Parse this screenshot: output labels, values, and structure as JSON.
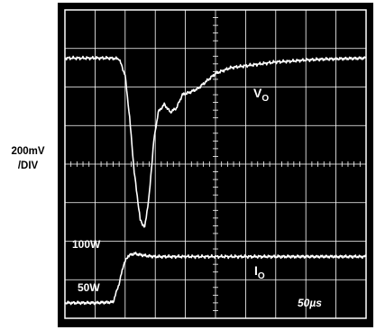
{
  "chart_data": {
    "type": "line",
    "title": "",
    "scale_label_line1": "200mV",
    "scale_label_line2": "/DIV",
    "timebase_label": "50µs",
    "grid": true,
    "x_divisions": 10,
    "y_divisions": 8,
    "xlim": [
      0,
      10
    ],
    "ylim": [
      0,
      8
    ],
    "series": [
      {
        "name": "VO",
        "label_main": "V",
        "label_sub": "O",
        "x": [
          0,
          0.5,
          1.0,
          1.5,
          1.8,
          2.0,
          2.15,
          2.3,
          2.5,
          2.65,
          2.8,
          2.95,
          3.1,
          3.3,
          3.5,
          3.7,
          3.9,
          4.1,
          4.4,
          4.7,
          5.0,
          5.5,
          6.0,
          6.5,
          7.0,
          7.5,
          8.0,
          8.5,
          9.0,
          9.5,
          10.0
        ],
        "y": [
          6.75,
          6.75,
          6.75,
          6.75,
          6.73,
          6.3,
          5.2,
          3.8,
          2.55,
          2.35,
          3.2,
          4.6,
          5.35,
          5.55,
          5.35,
          5.45,
          5.8,
          5.85,
          5.95,
          6.15,
          6.35,
          6.5,
          6.55,
          6.6,
          6.65,
          6.67,
          6.7,
          6.72,
          6.73,
          6.74,
          6.75
        ],
        "color": "#ffffff"
      },
      {
        "name": "IO",
        "label_main": "I",
        "label_sub": "O",
        "x": [
          0,
          0.5,
          1.0,
          1.6,
          1.8,
          1.95,
          2.1,
          2.3,
          2.5,
          2.7,
          3.0,
          3.5,
          4.0,
          5.0,
          6.0,
          7.0,
          8.0,
          9.0,
          10.0
        ],
        "y": [
          0.4,
          0.4,
          0.4,
          0.42,
          0.9,
          1.4,
          1.62,
          1.68,
          1.65,
          1.62,
          1.6,
          1.6,
          1.6,
          1.6,
          1.6,
          1.6,
          1.6,
          1.6,
          1.6
        ],
        "color": "#ffffff"
      }
    ],
    "annotations": [
      {
        "text": "100W",
        "x": 0.2,
        "y": 1.6
      },
      {
        "text": "50W",
        "x": 0.35,
        "y": 0.4
      }
    ],
    "colors": {
      "background": "#000000",
      "grid": "#ffffff",
      "trace": "#ffffff"
    }
  }
}
